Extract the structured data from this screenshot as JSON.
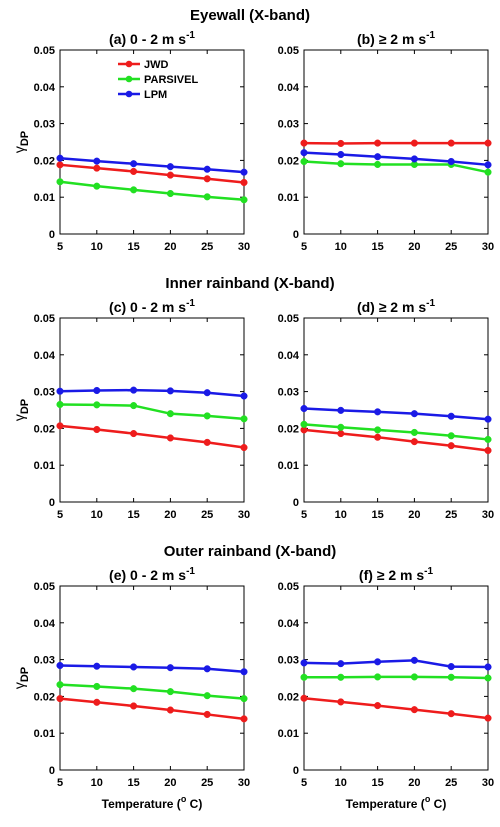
{
  "figure": {
    "row_titles": [
      "Eyewall (X-band)",
      "Inner rainband (X-band)",
      "Outer rainband (X-band)"
    ],
    "ylabel_main": "γ",
    "ylabel_sub": "DP",
    "xlabel_prefix": "Temperature (",
    "xlabel_deg": "o",
    "xlabel_suffix": " C)",
    "unit_main": "m s",
    "unit_exp": "-1"
  },
  "colors": {
    "JWD": "#ee1c1c",
    "PARSIVEL": "#22e022",
    "LPM": "#1a1ae6"
  },
  "chart_data": [
    {
      "type": "line",
      "panel": "a",
      "row": 0,
      "col": 0,
      "title_prefix": "(a) 0 - 2 ",
      "x": [
        5,
        10,
        15,
        20,
        25,
        30
      ],
      "xticks": [
        5,
        10,
        15,
        20,
        25,
        30
      ],
      "yticks": [
        0,
        0.01,
        0.02,
        0.03,
        0.04,
        0.05
      ],
      "ylim": [
        0,
        0.05
      ],
      "xlim": [
        5,
        30
      ],
      "legend": "top-center",
      "series": [
        {
          "name": "JWD",
          "values": [
            0.0188,
            0.0179,
            0.017,
            0.016,
            0.015,
            0.014
          ]
        },
        {
          "name": "PARSIVEL",
          "values": [
            0.0142,
            0.013,
            0.012,
            0.011,
            0.0101,
            0.0093
          ]
        },
        {
          "name": "LPM",
          "values": [
            0.0206,
            0.0198,
            0.0191,
            0.0183,
            0.0176,
            0.0168
          ]
        }
      ]
    },
    {
      "type": "line",
      "panel": "b",
      "row": 0,
      "col": 1,
      "title_prefix": "(b) ≥ 2 ",
      "x": [
        5,
        10,
        15,
        20,
        25,
        30
      ],
      "xticks": [
        5,
        10,
        15,
        20,
        25,
        30
      ],
      "yticks": [
        0,
        0.01,
        0.02,
        0.03,
        0.04,
        0.05
      ],
      "ylim": [
        0,
        0.05
      ],
      "xlim": [
        5,
        30
      ],
      "series": [
        {
          "name": "JWD",
          "values": [
            0.0247,
            0.0246,
            0.0247,
            0.0247,
            0.0247,
            0.0247
          ]
        },
        {
          "name": "PARSIVEL",
          "values": [
            0.0197,
            0.0191,
            0.0189,
            0.0189,
            0.0189,
            0.0168
          ]
        },
        {
          "name": "LPM",
          "values": [
            0.0221,
            0.0216,
            0.021,
            0.0204,
            0.0197,
            0.0188
          ]
        }
      ]
    },
    {
      "type": "line",
      "panel": "c",
      "row": 1,
      "col": 0,
      "title_prefix": "(c) 0 - 2 ",
      "x": [
        5,
        10,
        15,
        20,
        25,
        30
      ],
      "xticks": [
        5,
        10,
        15,
        20,
        25,
        30
      ],
      "yticks": [
        0,
        0.01,
        0.02,
        0.03,
        0.04,
        0.05
      ],
      "ylim": [
        0,
        0.05
      ],
      "xlim": [
        5,
        30
      ],
      "series": [
        {
          "name": "JWD",
          "values": [
            0.0207,
            0.0197,
            0.0186,
            0.0174,
            0.0162,
            0.0148
          ]
        },
        {
          "name": "PARSIVEL",
          "values": [
            0.0265,
            0.0264,
            0.0262,
            0.024,
            0.0234,
            0.0226
          ]
        },
        {
          "name": "LPM",
          "values": [
            0.0301,
            0.0303,
            0.0304,
            0.0302,
            0.0297,
            0.0288
          ]
        }
      ]
    },
    {
      "type": "line",
      "panel": "d",
      "row": 1,
      "col": 1,
      "title_prefix": "(d) ≥ 2 ",
      "x": [
        5,
        10,
        15,
        20,
        25,
        30
      ],
      "xticks": [
        5,
        10,
        15,
        20,
        25,
        30
      ],
      "yticks": [
        0,
        0.01,
        0.02,
        0.03,
        0.04,
        0.05
      ],
      "ylim": [
        0,
        0.05
      ],
      "xlim": [
        5,
        30
      ],
      "series": [
        {
          "name": "JWD",
          "values": [
            0.0196,
            0.0186,
            0.0176,
            0.0164,
            0.0153,
            0.014
          ]
        },
        {
          "name": "PARSIVEL",
          "values": [
            0.0211,
            0.0203,
            0.0196,
            0.0189,
            0.018,
            0.017
          ]
        },
        {
          "name": "LPM",
          "values": [
            0.0254,
            0.0249,
            0.0245,
            0.024,
            0.0233,
            0.0225
          ]
        }
      ]
    },
    {
      "type": "line",
      "panel": "e",
      "row": 2,
      "col": 0,
      "title_prefix": "(e) 0 - 2 ",
      "x": [
        5,
        10,
        15,
        20,
        25,
        30
      ],
      "xticks": [
        5,
        10,
        15,
        20,
        25,
        30
      ],
      "yticks": [
        0,
        0.01,
        0.02,
        0.03,
        0.04,
        0.05
      ],
      "ylim": [
        0,
        0.05
      ],
      "xlim": [
        5,
        30
      ],
      "series": [
        {
          "name": "JWD",
          "values": [
            0.0194,
            0.0184,
            0.0174,
            0.0163,
            0.0151,
            0.0139
          ]
        },
        {
          "name": "PARSIVEL",
          "values": [
            0.0232,
            0.0227,
            0.0221,
            0.0213,
            0.0202,
            0.0194
          ]
        },
        {
          "name": "LPM",
          "values": [
            0.0284,
            0.0282,
            0.028,
            0.0278,
            0.0275,
            0.0267
          ]
        }
      ]
    },
    {
      "type": "line",
      "panel": "f",
      "row": 2,
      "col": 1,
      "title_prefix": "(f) ≥ 2 ",
      "x": [
        5,
        10,
        15,
        20,
        25,
        30
      ],
      "xticks": [
        5,
        10,
        15,
        20,
        25,
        30
      ],
      "yticks": [
        0,
        0.01,
        0.02,
        0.03,
        0.04,
        0.05
      ],
      "ylim": [
        0,
        0.05
      ],
      "xlim": [
        5,
        30
      ],
      "series": [
        {
          "name": "JWD",
          "values": [
            0.0195,
            0.0185,
            0.0175,
            0.0164,
            0.0153,
            0.0141
          ]
        },
        {
          "name": "PARSIVEL",
          "values": [
            0.0252,
            0.0252,
            0.0253,
            0.0253,
            0.0252,
            0.025
          ]
        },
        {
          "name": "LPM",
          "values": [
            0.0291,
            0.0289,
            0.0294,
            0.0298,
            0.0281,
            0.028
          ]
        }
      ]
    }
  ]
}
